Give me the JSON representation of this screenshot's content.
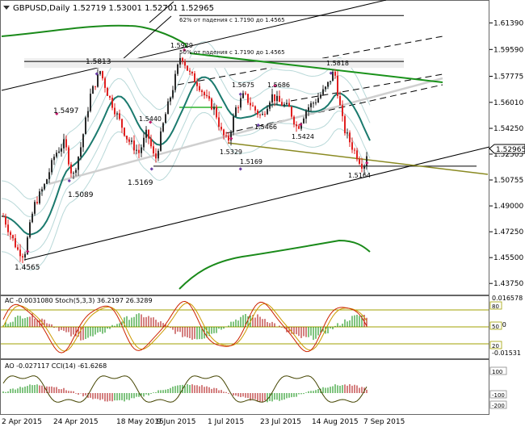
{
  "header": {
    "symbol": "GBPUSD,Daily",
    "ohlc": "1.52719 1.53001 1.52701 1.52965"
  },
  "price_panel": {
    "current_price": "1.52965",
    "y_ticks": [
      "1.61390",
      "1.59590",
      "1.57775",
      "1.56010",
      "1.54250",
      "1.52505",
      "1.50755",
      "1.49000",
      "1.47250",
      "1.45500",
      "1.43750"
    ],
    "annotations": [
      {
        "text": "62% от падения с 1.7190 до 1.4565"
      },
      {
        "text": "50% от падения с 1.7190 до 1.4565"
      }
    ],
    "price_labels": [
      "1.4565",
      "1.5089",
      "1.5497",
      "1.5813",
      "1.5440",
      "1.5169",
      "1.5929",
      "1.5675",
      "1.5686",
      "1.5466",
      "1.5329",
      "1.5169",
      "1.5424",
      "1.5818",
      "1.5164"
    ]
  },
  "ac_stoch_panel": {
    "title": "AC -0.0031080  Stoch(5,3,3) 36.2197 26.3289",
    "y_ticks": [
      "0.016578",
      "0.00",
      "-0.01531"
    ],
    "levels": [
      "80",
      "50",
      "20"
    ]
  },
  "ao_cci_panel": {
    "title": "AO -0.027117  CCI(14) -61.6268",
    "y_ticks": [
      "100",
      "-100",
      "-200"
    ]
  },
  "x_axis": {
    "ticks": [
      "2 Apr 2015",
      "24 Apr 2015",
      "18 May 2015",
      "9 Jun 2015",
      "1 Jul 2015",
      "23 Jul 2015",
      "14 Aug 2015",
      "7 Sep 2015"
    ]
  },
  "colors": {
    "bull": "#2a2a2a",
    "bear": "#e02020",
    "ma": "#1b7a6e",
    "envelope": "#b8d8d8",
    "long_ma": "#1a8a1a",
    "resistance": "#19921a",
    "support": "#8a8a22",
    "stoch_main": "#cc2200",
    "stoch_signal": "#cc9900",
    "level_line": "#a0a000",
    "ac_up": "#008800",
    "ac_down": "#aa0000",
    "cci": "#444400"
  },
  "chart_data": {
    "type": "candlestick",
    "symbol": "GBPUSD",
    "timeframe": "Daily",
    "x_ticks": [
      "2 Apr 2015",
      "24 Apr 2015",
      "18 May 2015",
      "9 Jun 2015",
      "1 Jul 2015",
      "23 Jul 2015",
      "14 Aug 2015",
      "7 Sep 2015"
    ],
    "ylim": [
      1.4305,
      1.6283
    ],
    "last": {
      "open": 1.52719,
      "high": 1.53001,
      "low": 1.52701,
      "close": 1.52965
    },
    "swing_points": [
      {
        "date": "2015-04-13",
        "price": 1.4565
      },
      {
        "date": "2015-04-28",
        "price": 1.5089
      },
      {
        "date": "2015-04-30",
        "price": 1.5497
      },
      {
        "date": "2015-05-14",
        "price": 1.5813
      },
      {
        "date": "2015-05-28",
        "price": 1.544
      },
      {
        "date": "2015-06-03",
        "price": 1.5169
      },
      {
        "date": "2015-06-18",
        "price": 1.5929
      },
      {
        "date": "2015-07-10",
        "price": 1.5675
      },
      {
        "date": "2015-07-23",
        "price": 1.5686
      },
      {
        "date": "2015-07-16",
        "price": 1.5466
      },
      {
        "date": "2015-07-02",
        "price": 1.5329
      },
      {
        "date": "2015-07-29",
        "price": 1.5169
      },
      {
        "date": "2015-08-04",
        "price": 1.5424
      },
      {
        "date": "2015-08-26",
        "price": 1.5818
      },
      {
        "date": "2015-09-04",
        "price": 1.5164
      }
    ],
    "fib_levels": [
      {
        "label": "62% от падения с 1.7190 до 1.4565",
        "price": 1.6189
      },
      {
        "label": "50% от падения с 1.7190 до 1.4565",
        "price": 1.5878
      }
    ],
    "horizontal_levels": [
      1.5169
    ],
    "oscillators": {
      "AC": -0.003108,
      "Stoch_main": 36.2197,
      "Stoch_signal": 26.3289,
      "AO": -0.027117,
      "CCI": -61.6268
    }
  }
}
